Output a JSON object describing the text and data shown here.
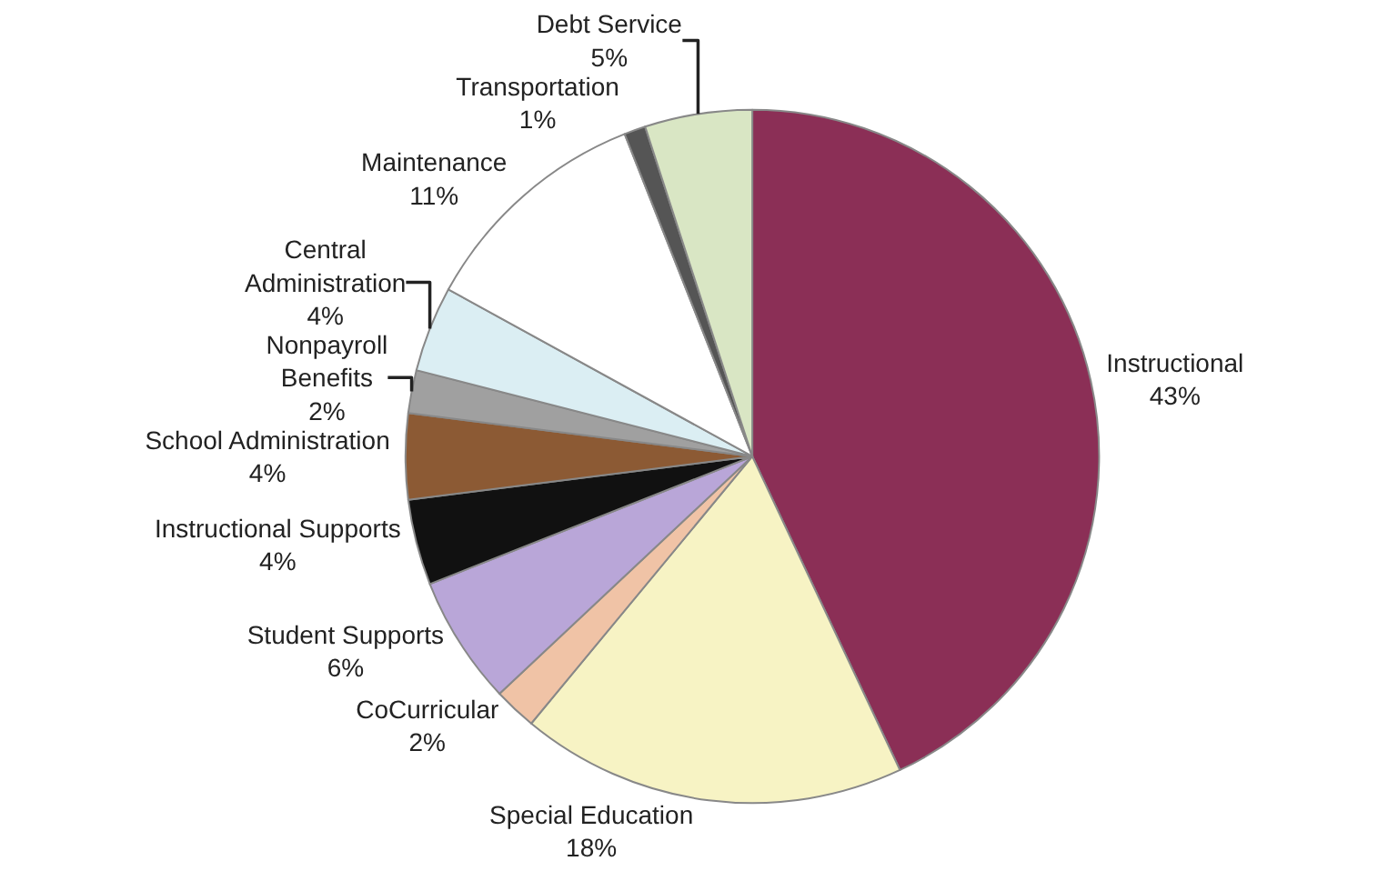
{
  "chart_data": {
    "type": "pie",
    "categories": [
      "Instructional",
      "Special Education",
      "CoCurricular",
      "Student Supports",
      "Instructional Supports",
      "School Administration",
      "Nonpayroll\nBenefits",
      "Central\nAdministration",
      "Maintenance",
      "Transportation",
      "Debt Service"
    ],
    "values": [
      43,
      18,
      2,
      6,
      4,
      4,
      2,
      4,
      11,
      1,
      5
    ],
    "value_labels": [
      "43%",
      "18%",
      "2%",
      "6%",
      "4%",
      "4%",
      "2%",
      "4%",
      "11%",
      "1%",
      "5%"
    ],
    "colors": [
      "#8b2f56",
      "#f7f3c4",
      "#f0c3a6",
      "#b9a6d8",
      "#111111",
      "#8c5a34",
      "#a0a0a0",
      "#dbeef3",
      "#ffffff",
      "#555555",
      "#d9e6c4"
    ],
    "legend": false
  }
}
